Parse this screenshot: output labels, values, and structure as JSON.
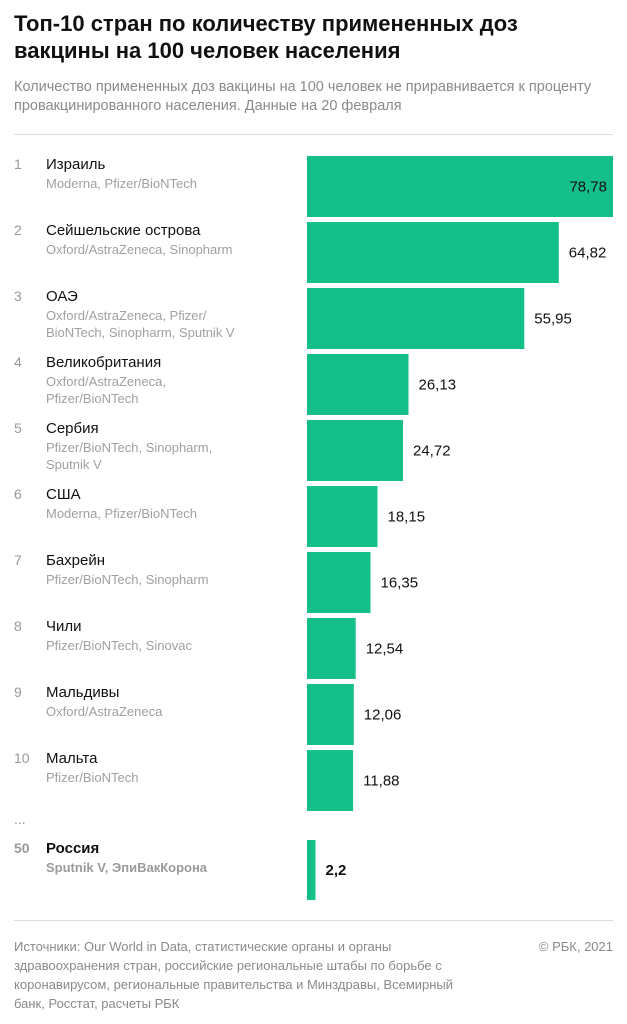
{
  "chart_data": {
    "type": "bar",
    "orientation": "horizontal",
    "title": "Топ-10 стран по количеству примененных доз вакцины на 100 человек населения",
    "subtitle": "Количество примененных доз вакцины на 100 человек не приравнивается к проценту провакцинированного населения. Данные на 20 февраля",
    "bar_color": "#14bf8a",
    "ellipsis": "...",
    "rows": [
      {
        "rank": "1",
        "country": "Израиль",
        "vaccines": [
          "Moderna, Pfizer/BioNTech"
        ],
        "value": 78.78,
        "label": "78,78",
        "highlight": false
      },
      {
        "rank": "2",
        "country": "Сейшельские острова",
        "vaccines": [
          "Oxford/AstraZeneca, Sinopharm"
        ],
        "value": 64.82,
        "label": "64,82",
        "highlight": false
      },
      {
        "rank": "3",
        "country": "ОАЭ",
        "vaccines": [
          "Oxford/AstraZeneca, Pfizer/",
          "BioNTech, Sinopharm, Sputnik V"
        ],
        "value": 55.95,
        "label": "55,95",
        "highlight": false
      },
      {
        "rank": "4",
        "country": "Великобритания",
        "vaccines": [
          "Oxford/AstraZeneca,",
          "Pfizer/BioNTech"
        ],
        "value": 26.13,
        "label": "26,13",
        "highlight": false
      },
      {
        "rank": "5",
        "country": "Сербия",
        "vaccines": [
          "Pfizer/BioNTech, Sinopharm,",
          "Sputnik V"
        ],
        "value": 24.72,
        "label": "24,72",
        "highlight": false
      },
      {
        "rank": "6",
        "country": "США",
        "vaccines": [
          "Moderna, Pfizer/BioNTech"
        ],
        "value": 18.15,
        "label": "18,15",
        "highlight": false
      },
      {
        "rank": "7",
        "country": "Бахрейн",
        "vaccines": [
          "Pfizer/BioNTech, Sinopharm"
        ],
        "value": 16.35,
        "label": "16,35",
        "highlight": false
      },
      {
        "rank": "8",
        "country": "Чили",
        "vaccines": [
          "Pfizer/BioNTech, Sinovac"
        ],
        "value": 12.54,
        "label": "12,54",
        "highlight": false
      },
      {
        "rank": "9",
        "country": "Мальдивы",
        "vaccines": [
          "Oxford/AstraZeneca"
        ],
        "value": 12.06,
        "label": "12,06",
        "highlight": false
      },
      {
        "rank": "10",
        "country": "Мальта",
        "vaccines": [
          "Pfizer/BioNTech"
        ],
        "value": 11.88,
        "label": "11,88",
        "highlight": false
      },
      {
        "rank": "50",
        "country": "Россия",
        "vaccines": [
          "Sputnik V, ЭпиВакКорона"
        ],
        "value": 2.2,
        "label": "2,2",
        "highlight": true
      }
    ]
  },
  "footer": {
    "source": "Источники: Our World in Data, статистические органы и органы здравоохранения стран, российские региональные штабы по борьбе с коронавирусом, региональные правительства и Минздравы, Всемирный банк, Росстат, расчеты РБК",
    "copyright": "© РБК, 2021"
  }
}
